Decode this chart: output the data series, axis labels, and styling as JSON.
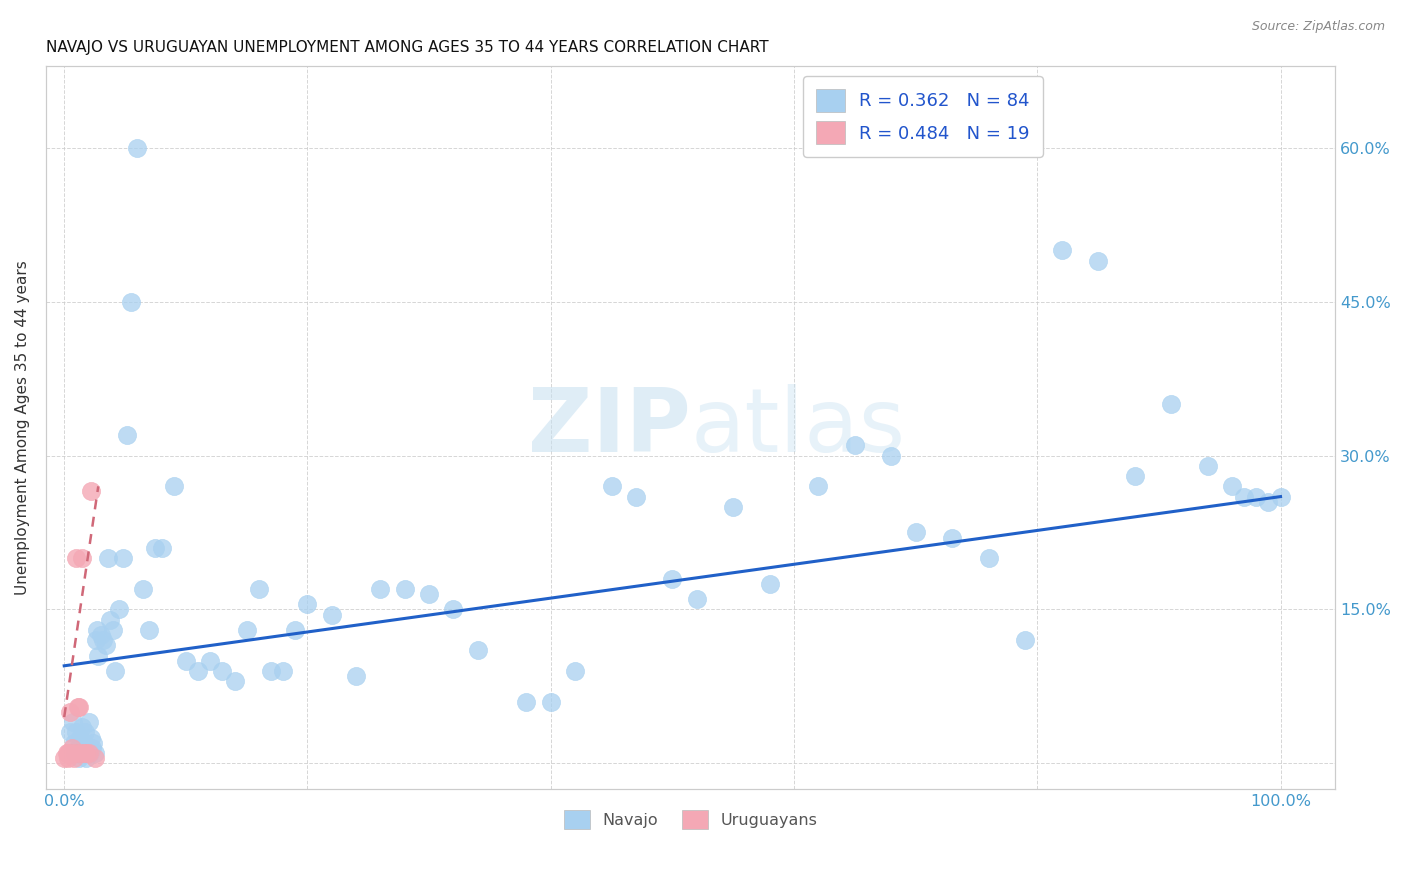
{
  "title": "NAVAJO VS URUGUAYAN UNEMPLOYMENT AMONG AGES 35 TO 44 YEARS CORRELATION CHART",
  "source": "Source: ZipAtlas.com",
  "ylabel": "Unemployment Among Ages 35 to 44 years",
  "navajo_color": "#A8D0F0",
  "uruguayan_color": "#F4A8B5",
  "trendline_navajo_color": "#2060C8",
  "trendline_uruguayan_color": "#D06878",
  "legend_text_color": "#2255CC",
  "tick_color": "#4499CC",
  "navajo_R": 0.362,
  "navajo_N": 84,
  "uruguayan_R": 0.484,
  "uruguayan_N": 19,
  "navajo_x": [
    0.005,
    0.007,
    0.008,
    0.009,
    0.01,
    0.011,
    0.012,
    0.013,
    0.014,
    0.015,
    0.016,
    0.017,
    0.018,
    0.019,
    0.02,
    0.021,
    0.022,
    0.023,
    0.024,
    0.025,
    0.026,
    0.027,
    0.028,
    0.03,
    0.032,
    0.034,
    0.036,
    0.038,
    0.04,
    0.042,
    0.045,
    0.048,
    0.052,
    0.055,
    0.06,
    0.065,
    0.07,
    0.075,
    0.08,
    0.09,
    0.1,
    0.11,
    0.12,
    0.13,
    0.14,
    0.15,
    0.16,
    0.17,
    0.18,
    0.19,
    0.2,
    0.22,
    0.24,
    0.26,
    0.28,
    0.3,
    0.32,
    0.34,
    0.38,
    0.4,
    0.42,
    0.45,
    0.47,
    0.5,
    0.52,
    0.55,
    0.58,
    0.62,
    0.65,
    0.68,
    0.7,
    0.73,
    0.76,
    0.79,
    0.82,
    0.85,
    0.88,
    0.91,
    0.94,
    0.96,
    0.97,
    0.98,
    0.99,
    1.0
  ],
  "navajo_y": [
    0.03,
    0.04,
    0.02,
    0.01,
    0.03,
    0.015,
    0.005,
    0.025,
    0.01,
    0.035,
    0.02,
    0.03,
    0.005,
    0.015,
    0.04,
    0.01,
    0.025,
    0.015,
    0.02,
    0.01,
    0.12,
    0.13,
    0.105,
    0.125,
    0.12,
    0.115,
    0.2,
    0.14,
    0.13,
    0.09,
    0.15,
    0.2,
    0.32,
    0.45,
    0.6,
    0.17,
    0.13,
    0.21,
    0.21,
    0.27,
    0.1,
    0.09,
    0.1,
    0.09,
    0.08,
    0.13,
    0.17,
    0.09,
    0.09,
    0.13,
    0.155,
    0.145,
    0.085,
    0.17,
    0.17,
    0.165,
    0.15,
    0.11,
    0.06,
    0.06,
    0.09,
    0.27,
    0.26,
    0.18,
    0.16,
    0.25,
    0.175,
    0.27,
    0.31,
    0.3,
    0.225,
    0.22,
    0.2,
    0.12,
    0.5,
    0.49,
    0.28,
    0.35,
    0.29,
    0.27,
    0.26,
    0.26,
    0.255,
    0.26
  ],
  "uruguayan_x": [
    0.0,
    0.002,
    0.003,
    0.004,
    0.005,
    0.006,
    0.008,
    0.009,
    0.01,
    0.011,
    0.012,
    0.013,
    0.015,
    0.016,
    0.018,
    0.02,
    0.022,
    0.025,
    0.003
  ],
  "uruguayan_y": [
    0.005,
    0.01,
    0.005,
    0.01,
    0.05,
    0.015,
    0.005,
    0.01,
    0.2,
    0.055,
    0.055,
    0.01,
    0.2,
    0.01,
    0.01,
    0.01,
    0.265,
    0.005,
    0.01
  ],
  "ytick_vals": [
    0.0,
    0.15,
    0.3,
    0.45,
    0.6
  ],
  "ytick_labels_right": [
    "",
    "15.0%",
    "30.0%",
    "45.0%",
    "60.0%"
  ],
  "xtick_vals": [
    0.0,
    0.2,
    0.4,
    0.6,
    0.8,
    1.0
  ],
  "xtick_labels": [
    "0.0%",
    "",
    "",
    "",
    "",
    "100.0%"
  ],
  "xlim": [
    -0.015,
    1.045
  ],
  "ylim": [
    -0.025,
    0.68
  ]
}
